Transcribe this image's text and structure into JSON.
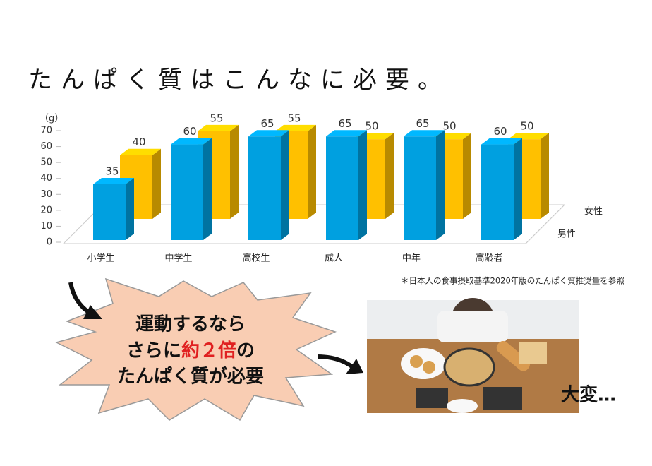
{
  "chart_data": {
    "type": "bar3d",
    "title": "たんぱく質はこんなに必要。",
    "y_unit": "（g）",
    "categories": [
      "小学生",
      "中学生",
      "高校生",
      "成人",
      "中年",
      "高齢者"
    ],
    "series": [
      {
        "name": "男性",
        "color": "#00a0e0",
        "values": [
          35,
          60,
          65,
          65,
          65,
          60
        ]
      },
      {
        "name": "女性",
        "color": "#ffc000",
        "values": [
          40,
          55,
          55,
          50,
          50,
          50
        ]
      }
    ],
    "ylim": [
      0,
      70
    ],
    "yticks": [
      0,
      10,
      20,
      30,
      40,
      50,
      60,
      70
    ],
    "note": "＊日本人の食事摂取基準2020年版のたんぱく質推奨量を参照",
    "callout": {
      "line1": "運動するなら",
      "line2_pre": "さらに",
      "line2_emph": "約２倍",
      "line2_post": "の",
      "line3": "たんぱく質が必要"
    },
    "exclamation": "大変…"
  }
}
